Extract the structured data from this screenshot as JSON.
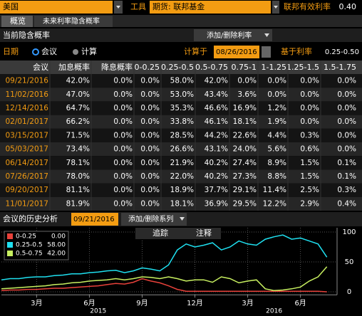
{
  "top_bar": {
    "country": "美国",
    "tool_label": "工具",
    "tool": "期货: 联邦基金",
    "rate_label": "联邦有效利率",
    "rate": "0.40"
  },
  "tabs": [
    "概览",
    "未来利率隐含概率"
  ],
  "section": {
    "title": "当前隐含概率",
    "button": "添加/删除利率"
  },
  "options": {
    "date_label": "日期",
    "radio_meeting": "会议",
    "radio_calc": "计算",
    "calc_at_label": "计算于",
    "calc_at": "08/26/2016",
    "base_rate_label": "基于利率",
    "base_rate": "0.25-0.50"
  },
  "table": {
    "columns": [
      "会议",
      "加息概率",
      "降息概率",
      "0-0.25",
      "0.25-0.5",
      "0.5-0.75",
      "0.75-1",
      "1-1.25",
      "1.25-1.5",
      "1.5-1.75"
    ],
    "rows": [
      [
        "09/21/2016",
        "42.0%",
        "0.0%",
        "0.0%",
        "58.0%",
        "42.0%",
        "0.0%",
        "0.0%",
        "0.0%",
        "0.0%"
      ],
      [
        "11/02/2016",
        "47.0%",
        "0.0%",
        "0.0%",
        "53.0%",
        "43.4%",
        "3.6%",
        "0.0%",
        "0.0%",
        "0.0%"
      ],
      [
        "12/14/2016",
        "64.7%",
        "0.0%",
        "0.0%",
        "35.3%",
        "46.6%",
        "16.9%",
        "1.2%",
        "0.0%",
        "0.0%"
      ],
      [
        "02/01/2017",
        "66.2%",
        "0.0%",
        "0.0%",
        "33.8%",
        "46.1%",
        "18.1%",
        "1.9%",
        "0.0%",
        "0.0%"
      ],
      [
        "03/15/2017",
        "71.5%",
        "0.0%",
        "0.0%",
        "28.5%",
        "44.2%",
        "22.6%",
        "4.4%",
        "0.3%",
        "0.0%"
      ],
      [
        "05/03/2017",
        "73.4%",
        "0.0%",
        "0.0%",
        "26.6%",
        "43.1%",
        "24.0%",
        "5.6%",
        "0.6%",
        "0.0%"
      ],
      [
        "06/14/2017",
        "78.1%",
        "0.0%",
        "0.0%",
        "21.9%",
        "40.2%",
        "27.4%",
        "8.9%",
        "1.5%",
        "0.1%"
      ],
      [
        "07/26/2017",
        "78.0%",
        "0.0%",
        "0.0%",
        "22.0%",
        "40.2%",
        "27.3%",
        "8.8%",
        "1.5%",
        "0.1%"
      ],
      [
        "09/20/2017",
        "81.1%",
        "0.0%",
        "0.0%",
        "18.9%",
        "37.7%",
        "29.1%",
        "11.4%",
        "2.5%",
        "0.3%"
      ],
      [
        "11/01/2017",
        "81.9%",
        "0.0%",
        "0.0%",
        "18.1%",
        "36.9%",
        "29.5%",
        "12.2%",
        "2.9%",
        "0.4%"
      ]
    ]
  },
  "history": {
    "title": "会议的历史分析",
    "date": "09/21/2016",
    "button": "添加/删除系列",
    "tools": [
      "追踪",
      "注释"
    ]
  },
  "chart_data": {
    "type": "line",
    "x": [
      0,
      0.5,
      1,
      1.5,
      2,
      2.5,
      3,
      3.5,
      4,
      4.5,
      5,
      5.5,
      6,
      6.5,
      7,
      7.5,
      8,
      8.5,
      9,
      9.5,
      10,
      10.5,
      11,
      11.5,
      12,
      12.5,
      13,
      13.5,
      14,
      14.5,
      15,
      15.5,
      16,
      16.5,
      17,
      17.5,
      18,
      18.5
    ],
    "xlim": [
      0,
      19
    ],
    "xticks": [
      {
        "value": 2,
        "label": "3月"
      },
      {
        "value": 5,
        "label": "6月"
      },
      {
        "value": 8,
        "label": "9月"
      },
      {
        "value": 11,
        "label": "12月"
      },
      {
        "value": 14,
        "label": "3月"
      },
      {
        "value": 17,
        "label": "6月"
      }
    ],
    "year_ticks": [
      {
        "value": 5.5,
        "label": "2015"
      },
      {
        "value": 15.5,
        "label": "2016"
      }
    ],
    "ylim": [
      -5,
      100
    ],
    "yticks": [
      0,
      50,
      100
    ],
    "grid": true,
    "series": [
      {
        "name": "0-0.25",
        "color": "#e8413a",
        "value_label": "0.00",
        "values": [
          2,
          3,
          3,
          4,
          4,
          5,
          6,
          6,
          7,
          8,
          9,
          10,
          12,
          14,
          13,
          16,
          22,
          18,
          15,
          10,
          4,
          1,
          1,
          1,
          1,
          1,
          1,
          1,
          1,
          1,
          1,
          1,
          1,
          1,
          1,
          1,
          1,
          0
        ]
      },
      {
        "name": "0.25-0.5",
        "color": "#1fe0f0",
        "value_label": "58.00",
        "values": [
          20,
          22,
          22,
          24,
          25,
          25,
          27,
          28,
          30,
          30,
          32,
          33,
          35,
          36,
          32,
          35,
          40,
          38,
          35,
          45,
          70,
          80,
          75,
          78,
          82,
          70,
          75,
          85,
          80,
          78,
          88,
          92,
          95,
          88,
          90,
          85,
          80,
          58
        ]
      },
      {
        "name": "0.5-0.75",
        "color": "#c8f060",
        "value_label": "42.00",
        "values": [
          5,
          6,
          7,
          8,
          9,
          10,
          12,
          13,
          15,
          16,
          18,
          19,
          20,
          22,
          20,
          22,
          25,
          24,
          22,
          25,
          22,
          18,
          20,
          20,
          16,
          25,
          22,
          15,
          18,
          20,
          5,
          2,
          3,
          5,
          8,
          18,
          25,
          42
        ]
      }
    ]
  }
}
